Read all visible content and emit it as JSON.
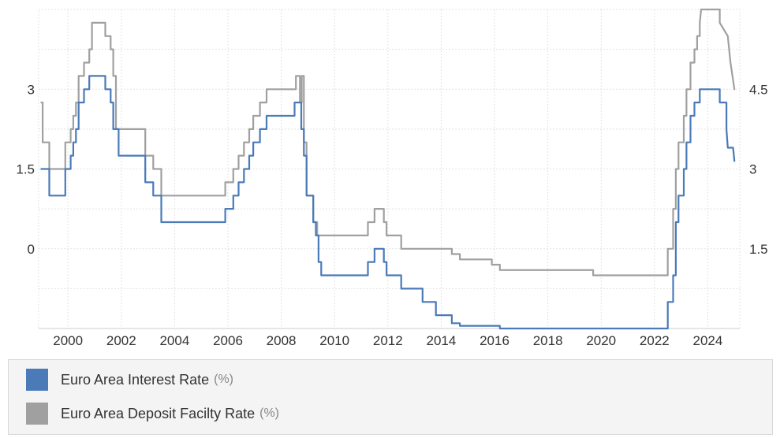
{
  "colors": {
    "interest": "#4a7ab8",
    "deposit": "#a0a0a0",
    "grid": "#e3e3e3",
    "axis": "#cccccc"
  },
  "legend": {
    "items": [
      {
        "name": "Euro Area Interest Rate",
        "unit": "(%)",
        "color": "#4a7ab8"
      },
      {
        "name": "Euro Area Deposit Facilty Rate",
        "unit": "(%)",
        "color": "#a0a0a0"
      }
    ]
  },
  "chart_data": {
    "type": "line",
    "title": "",
    "xlabel": "",
    "grid": true,
    "legend_position": "bottom",
    "x_ticks": [
      "2000",
      "2002",
      "2004",
      "2006",
      "2008",
      "2010",
      "2012",
      "2014",
      "2016",
      "2018",
      "2020",
      "2022",
      "2024"
    ],
    "xlim": [
      1998.9,
      2025.2
    ],
    "left_axis": {
      "ticks": [
        "3",
        "1.5",
        "0"
      ],
      "tick_values": [
        3,
        1.5,
        0
      ],
      "ylim": [
        -1.5,
        4.5
      ]
    },
    "right_axis": {
      "ticks": [
        "4.5",
        "3",
        "1.5"
      ],
      "tick_values": [
        4.5,
        3,
        1.5
      ],
      "ylim": [
        0,
        6
      ]
    },
    "series": [
      {
        "name": "Euro Area Interest Rate",
        "axis": "left",
        "points": [
          [
            1999.0,
            1.5
          ],
          [
            1999.3,
            1.5
          ],
          [
            1999.3,
            1.0
          ],
          [
            1999.9,
            1.0
          ],
          [
            1999.9,
            1.5
          ],
          [
            2000.1,
            1.5
          ],
          [
            2000.1,
            1.75
          ],
          [
            2000.2,
            1.75
          ],
          [
            2000.2,
            2.0
          ],
          [
            2000.3,
            2.0
          ],
          [
            2000.3,
            2.25
          ],
          [
            2000.4,
            2.25
          ],
          [
            2000.4,
            2.75
          ],
          [
            2000.6,
            2.75
          ],
          [
            2000.6,
            3.0
          ],
          [
            2000.8,
            3.0
          ],
          [
            2000.8,
            3.25
          ],
          [
            2001.4,
            3.25
          ],
          [
            2001.4,
            3.0
          ],
          [
            2001.6,
            3.0
          ],
          [
            2001.6,
            2.75
          ],
          [
            2001.7,
            2.75
          ],
          [
            2001.7,
            2.25
          ],
          [
            2001.9,
            2.25
          ],
          [
            2001.9,
            1.75
          ],
          [
            2002.9,
            1.75
          ],
          [
            2002.9,
            1.25
          ],
          [
            2003.2,
            1.25
          ],
          [
            2003.2,
            1.0
          ],
          [
            2003.5,
            1.0
          ],
          [
            2003.5,
            0.5
          ],
          [
            2005.9,
            0.5
          ],
          [
            2005.9,
            0.75
          ],
          [
            2006.2,
            0.75
          ],
          [
            2006.2,
            1.0
          ],
          [
            2006.4,
            1.0
          ],
          [
            2006.4,
            1.25
          ],
          [
            2006.6,
            1.25
          ],
          [
            2006.6,
            1.5
          ],
          [
            2006.8,
            1.5
          ],
          [
            2006.8,
            1.75
          ],
          [
            2006.95,
            1.75
          ],
          [
            2006.95,
            2.0
          ],
          [
            2007.2,
            2.0
          ],
          [
            2007.2,
            2.25
          ],
          [
            2007.45,
            2.25
          ],
          [
            2007.45,
            2.5
          ],
          [
            2008.5,
            2.5
          ],
          [
            2008.5,
            2.75
          ],
          [
            2008.75,
            2.75
          ],
          [
            2008.75,
            2.25
          ],
          [
            2008.85,
            2.25
          ],
          [
            2008.85,
            1.75
          ],
          [
            2008.95,
            1.75
          ],
          [
            2008.95,
            1.0
          ],
          [
            2009.2,
            1.0
          ],
          [
            2009.2,
            0.5
          ],
          [
            2009.3,
            0.5
          ],
          [
            2009.3,
            0.25
          ],
          [
            2009.4,
            0.25
          ],
          [
            2009.4,
            -0.25
          ],
          [
            2009.5,
            -0.25
          ],
          [
            2009.5,
            -0.5
          ],
          [
            2011.25,
            -0.5
          ],
          [
            2011.25,
            -0.25
          ],
          [
            2011.5,
            -0.25
          ],
          [
            2011.5,
            0.0
          ],
          [
            2011.85,
            0.0
          ],
          [
            2011.85,
            -0.25
          ],
          [
            2011.95,
            -0.25
          ],
          [
            2011.95,
            -0.5
          ],
          [
            2012.5,
            -0.5
          ],
          [
            2012.5,
            -0.75
          ],
          [
            2013.3,
            -0.75
          ],
          [
            2013.3,
            -1.0
          ],
          [
            2013.8,
            -1.0
          ],
          [
            2013.8,
            -1.25
          ],
          [
            2014.4,
            -1.25
          ],
          [
            2014.4,
            -1.4
          ],
          [
            2014.7,
            -1.4
          ],
          [
            2014.7,
            -1.45
          ],
          [
            2016.2,
            -1.45
          ],
          [
            2016.2,
            -1.5
          ],
          [
            2022.5,
            -1.5
          ],
          [
            2022.5,
            -1.0
          ],
          [
            2022.7,
            -1.0
          ],
          [
            2022.7,
            -0.5
          ],
          [
            2022.8,
            -0.5
          ],
          [
            2022.8,
            0.5
          ],
          [
            2022.9,
            0.5
          ],
          [
            2022.9,
            1.0
          ],
          [
            2023.1,
            1.0
          ],
          [
            2023.1,
            1.5
          ],
          [
            2023.2,
            1.5
          ],
          [
            2023.2,
            2.0
          ],
          [
            2023.35,
            2.0
          ],
          [
            2023.35,
            2.5
          ],
          [
            2023.5,
            2.5
          ],
          [
            2023.5,
            2.75
          ],
          [
            2023.7,
            2.75
          ],
          [
            2023.7,
            3.0
          ],
          [
            2024.45,
            3.0
          ],
          [
            2024.45,
            2.75
          ],
          [
            2024.7,
            2.75
          ],
          [
            2024.7,
            2.25
          ],
          [
            2024.75,
            1.9
          ],
          [
            2024.95,
            1.9
          ],
          [
            2025.0,
            1.65
          ]
        ]
      },
      {
        "name": "Euro Area Deposit Facilty Rate",
        "axis": "right",
        "points": [
          [
            1999.0,
            4.25
          ],
          [
            1999.05,
            4.25
          ],
          [
            1999.05,
            3.5
          ],
          [
            1999.3,
            3.5
          ],
          [
            1999.3,
            3.0
          ],
          [
            1999.9,
            3.0
          ],
          [
            1999.9,
            3.5
          ],
          [
            2000.1,
            3.5
          ],
          [
            2000.1,
            3.75
          ],
          [
            2000.2,
            3.75
          ],
          [
            2000.2,
            4.0
          ],
          [
            2000.3,
            4.0
          ],
          [
            2000.3,
            4.25
          ],
          [
            2000.4,
            4.25
          ],
          [
            2000.4,
            4.75
          ],
          [
            2000.6,
            4.75
          ],
          [
            2000.6,
            5.0
          ],
          [
            2000.8,
            5.0
          ],
          [
            2000.8,
            5.25
          ],
          [
            2000.9,
            5.25
          ],
          [
            2000.9,
            5.75
          ],
          [
            2001.4,
            5.75
          ],
          [
            2001.4,
            5.5
          ],
          [
            2001.6,
            5.5
          ],
          [
            2001.6,
            5.25
          ],
          [
            2001.7,
            5.25
          ],
          [
            2001.7,
            4.75
          ],
          [
            2001.8,
            4.75
          ],
          [
            2001.8,
            3.75
          ],
          [
            2002.9,
            3.75
          ],
          [
            2002.9,
            3.25
          ],
          [
            2003.2,
            3.25
          ],
          [
            2003.2,
            3.0
          ],
          [
            2003.5,
            3.0
          ],
          [
            2003.5,
            2.5
          ],
          [
            2005.9,
            2.5
          ],
          [
            2005.9,
            2.75
          ],
          [
            2006.2,
            2.75
          ],
          [
            2006.2,
            3.0
          ],
          [
            2006.4,
            3.0
          ],
          [
            2006.4,
            3.25
          ],
          [
            2006.6,
            3.25
          ],
          [
            2006.6,
            3.5
          ],
          [
            2006.8,
            3.5
          ],
          [
            2006.8,
            3.75
          ],
          [
            2006.95,
            3.75
          ],
          [
            2006.95,
            4.0
          ],
          [
            2007.2,
            4.0
          ],
          [
            2007.2,
            4.25
          ],
          [
            2007.45,
            4.25
          ],
          [
            2007.45,
            4.5
          ],
          [
            2008.55,
            4.5
          ],
          [
            2008.55,
            4.75
          ],
          [
            2008.7,
            4.75
          ],
          [
            2008.7,
            4.25
          ],
          [
            2008.77,
            4.25
          ],
          [
            2008.77,
            4.75
          ],
          [
            2008.85,
            4.75
          ],
          [
            2008.85,
            3.5
          ],
          [
            2008.95,
            3.5
          ],
          [
            2008.95,
            2.5
          ],
          [
            2009.2,
            2.5
          ],
          [
            2009.2,
            2.0
          ],
          [
            2009.35,
            2.0
          ],
          [
            2009.35,
            1.75
          ],
          [
            2011.25,
            1.75
          ],
          [
            2011.25,
            2.0
          ],
          [
            2011.5,
            2.0
          ],
          [
            2011.5,
            2.25
          ],
          [
            2011.85,
            2.25
          ],
          [
            2011.85,
            2.0
          ],
          [
            2011.95,
            2.0
          ],
          [
            2011.95,
            1.75
          ],
          [
            2012.5,
            1.75
          ],
          [
            2012.5,
            1.5
          ],
          [
            2014.4,
            1.5
          ],
          [
            2014.4,
            1.4
          ],
          [
            2014.7,
            1.4
          ],
          [
            2014.7,
            1.3
          ],
          [
            2015.9,
            1.3
          ],
          [
            2015.9,
            1.2
          ],
          [
            2016.2,
            1.2
          ],
          [
            2016.2,
            1.1
          ],
          [
            2019.7,
            1.1
          ],
          [
            2019.7,
            1.0
          ],
          [
            2022.5,
            1.0
          ],
          [
            2022.5,
            1.5
          ],
          [
            2022.7,
            1.5
          ],
          [
            2022.7,
            2.25
          ],
          [
            2022.8,
            2.25
          ],
          [
            2022.8,
            3.0
          ],
          [
            2022.9,
            3.0
          ],
          [
            2022.9,
            3.5
          ],
          [
            2023.1,
            3.5
          ],
          [
            2023.1,
            4.0
          ],
          [
            2023.2,
            4.0
          ],
          [
            2023.2,
            4.5
          ],
          [
            2023.35,
            4.5
          ],
          [
            2023.35,
            5.0
          ],
          [
            2023.5,
            5.0
          ],
          [
            2023.5,
            5.25
          ],
          [
            2023.6,
            5.25
          ],
          [
            2023.6,
            5.5
          ],
          [
            2023.7,
            5.5
          ],
          [
            2023.7,
            5.75
          ],
          [
            2023.75,
            6.0
          ],
          [
            2024.45,
            6.0
          ],
          [
            2024.45,
            5.75
          ],
          [
            2024.75,
            5.5
          ],
          [
            2024.85,
            5.0
          ],
          [
            2025.0,
            4.5
          ]
        ]
      }
    ]
  }
}
